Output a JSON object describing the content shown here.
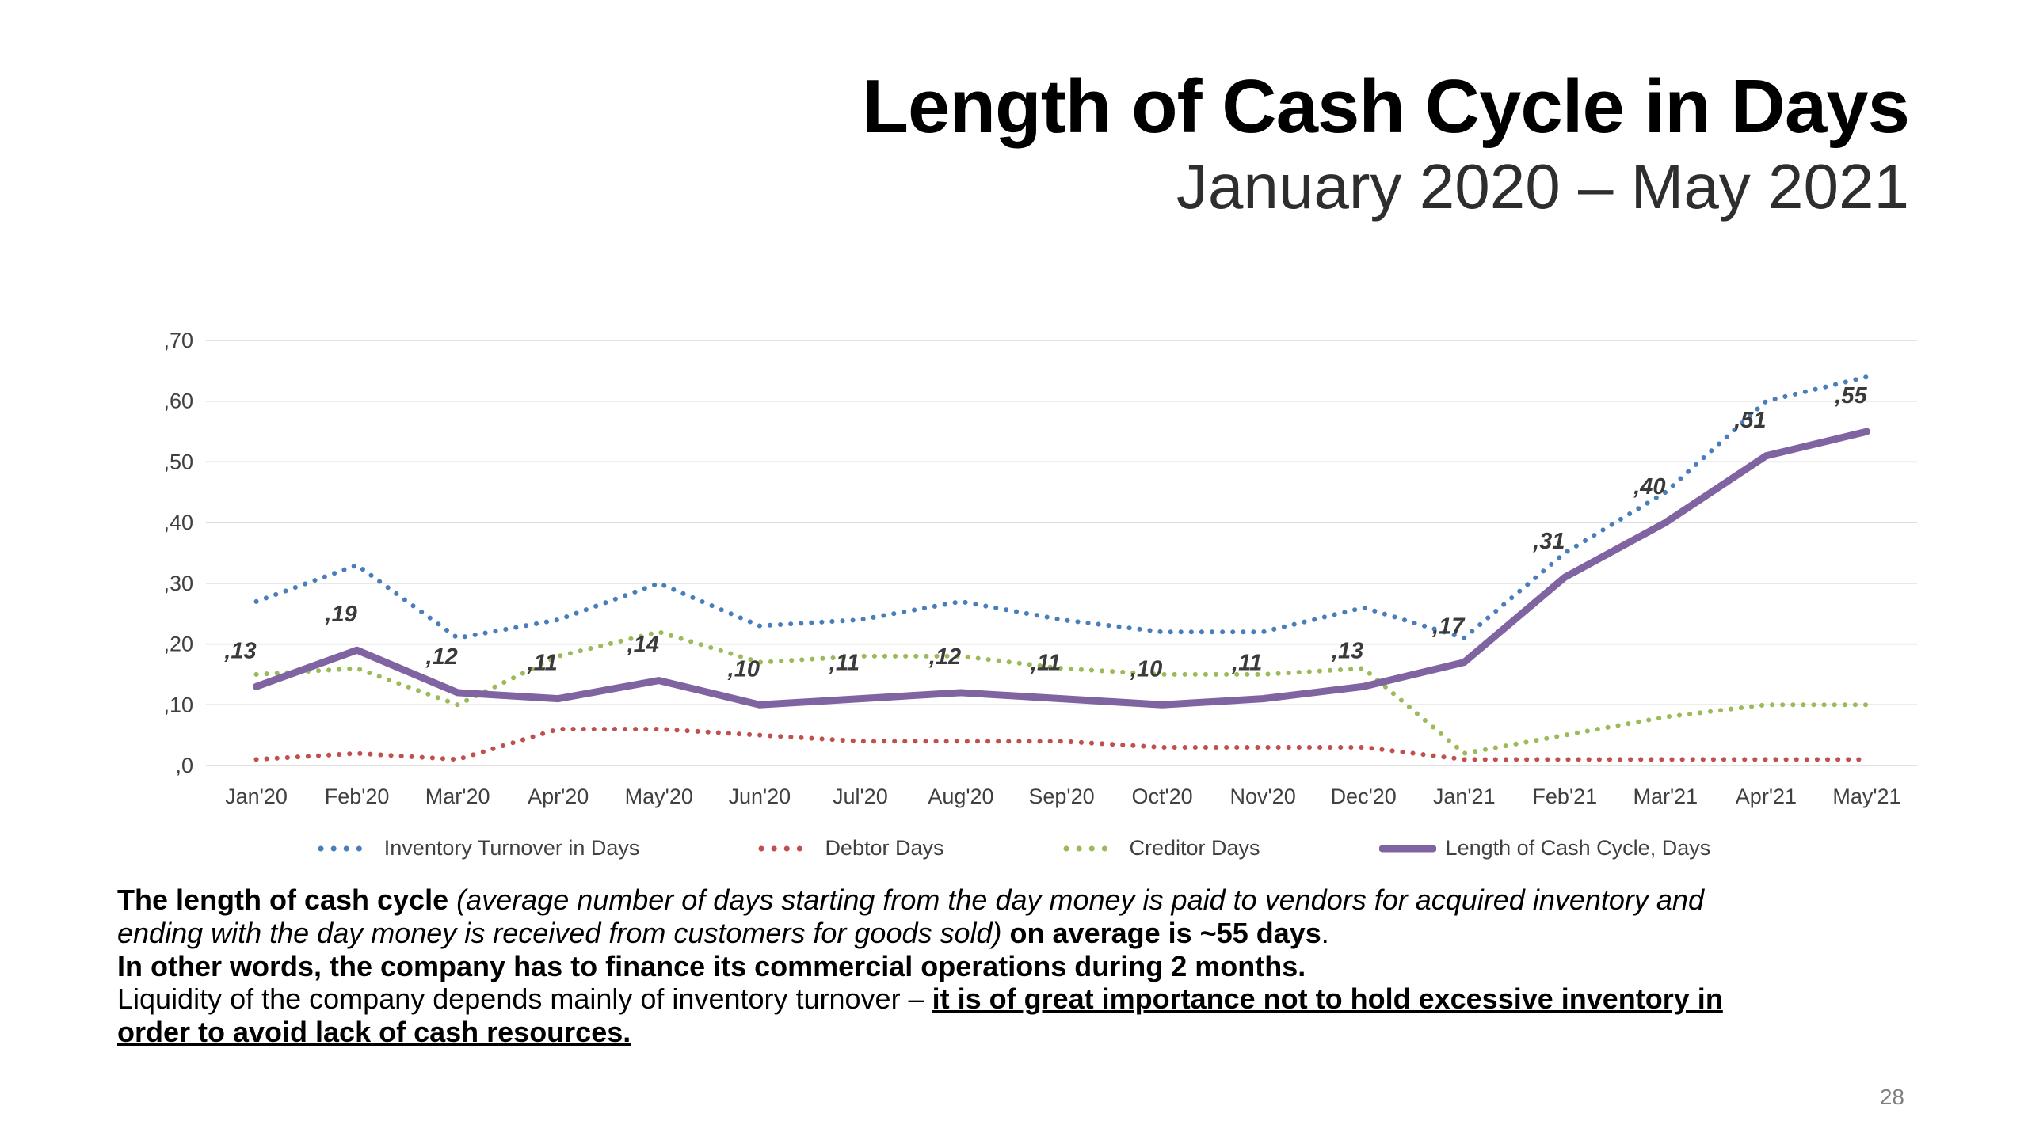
{
  "slide": {
    "title": "Length of Cash Cycle in Days",
    "subtitle": "January 2020 – May 2021",
    "page_number": "28"
  },
  "chart_data": {
    "type": "line",
    "title": "Length of Cash Cycle in Days",
    "subtitle": "January 2020 – May 2021",
    "xlabel": "",
    "ylabel": "",
    "ylim": [
      0,
      70
    ],
    "ytick_step": 10,
    "ytick_labels": [
      ",0",
      ",10",
      ",20",
      ",30",
      ",40",
      ",50",
      ",60",
      ",70"
    ],
    "grid": true,
    "legend_position": "bottom",
    "categories": [
      "Jan'20",
      "Feb'20",
      "Mar'20",
      "Apr'20",
      "May'20",
      "Jun'20",
      "Jul'20",
      "Aug'20",
      "Sep'20",
      "Oct'20",
      "Nov'20",
      "Dec'20",
      "Jan'21",
      "Feb'21",
      "Mar'21",
      "Apr'21",
      "May'21"
    ],
    "series": [
      {
        "name": "Inventory Turnover in Days",
        "color": "#4a7ebb",
        "style": "dotted",
        "values": [
          27,
          33,
          21,
          24,
          30,
          23,
          24,
          27,
          24,
          22,
          22,
          26,
          21,
          35,
          45,
          60,
          64
        ]
      },
      {
        "name": "Debtor Days",
        "color": "#c0504d",
        "style": "dotted",
        "values": [
          1,
          2,
          1,
          6,
          6,
          5,
          4,
          4,
          4,
          3,
          3,
          3,
          1,
          1,
          1,
          1,
          1
        ]
      },
      {
        "name": "Creditor Days",
        "color": "#9bbb59",
        "style": "dotted",
        "values": [
          15,
          16,
          10,
          18,
          22,
          17,
          18,
          18,
          16,
          15,
          15,
          16,
          2,
          5,
          8,
          10,
          10
        ]
      },
      {
        "name": "Length of Cash Cycle, Days",
        "color": "#8064a2",
        "style": "solid",
        "values": [
          13,
          19,
          12,
          11,
          14,
          10,
          11,
          12,
          11,
          10,
          11,
          13,
          17,
          31,
          40,
          51,
          55
        ],
        "labels": [
          ",13",
          ",19",
          ",12",
          ",11",
          ",14",
          ",10",
          ",11",
          ",12",
          ",11",
          ",10",
          ",11",
          ",13",
          ",17",
          ",31",
          ",40",
          ",51",
          ",55"
        ]
      }
    ]
  },
  "commentary": {
    "paragraphs": [
      [
        {
          "text": "The length of cash cycle ",
          "bold": true
        },
        {
          "text": "(average number of days starting from the day money is paid to vendors for acquired inventory and ending with the day money is received from customers for goods sold)",
          "italic": true
        },
        {
          "text": " "
        },
        {
          "text": "on average is ~55 days",
          "bold": true
        },
        {
          "text": "."
        }
      ],
      [
        {
          "text": "In other words, the company has to finance its commercial operations during 2 months.",
          "bold": true
        }
      ],
      [
        {
          "text": "Liquidity of the company depends mainly of inventory turnover – "
        },
        {
          "text": "it is of great importance not to hold excessive inventory in order to avoid lack of cash resources.",
          "bold": true,
          "underline": true
        }
      ]
    ]
  }
}
